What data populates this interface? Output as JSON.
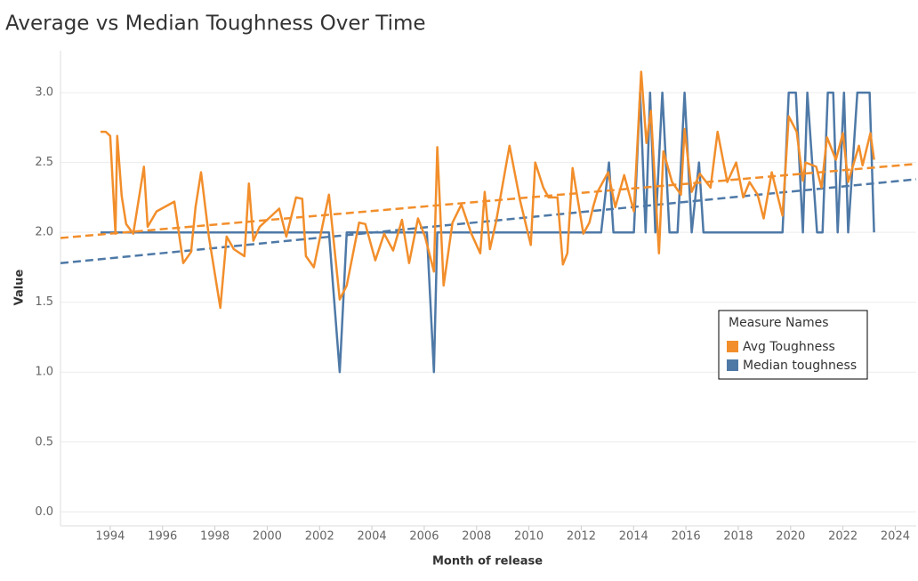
{
  "chart_data": {
    "type": "line",
    "title": "Average vs Median Toughness Over Time",
    "x_label": "Month of release",
    "y_label": "Value",
    "legend_title": "Measure Names",
    "legend_position": "right",
    "grid": true,
    "xlim": [
      1992.1,
      2024.8
    ],
    "xticks": [
      1994,
      1996,
      1998,
      2000,
      2002,
      2004,
      2006,
      2008,
      2010,
      2012,
      2014,
      2016,
      2018,
      2020,
      2022,
      2024
    ],
    "ylim": [
      -0.1,
      3.3
    ],
    "yticks": [
      {
        "value": 0,
        "label": "0.0"
      },
      0.5,
      {
        "value": 1,
        "label": "1.0"
      },
      1.5,
      {
        "value": 2,
        "label": "2.0"
      },
      2.5,
      {
        "value": 3,
        "label": "3.0"
      }
    ],
    "series": [
      {
        "name": "Avg Toughness",
        "color": "#f28e2b",
        "x": [
          1993.63,
          1993.83,
          1994.0,
          1994.2,
          1994.27,
          1994.44,
          1994.61,
          1994.88,
          1995.29,
          1995.43,
          1995.77,
          1996.45,
          1996.79,
          1997.09,
          1997.26,
          1997.47,
          1997.77,
          1998.21,
          1998.45,
          1998.72,
          1999.13,
          1999.3,
          1999.47,
          1999.71,
          2000.46,
          2000.73,
          2001.1,
          2001.34,
          2001.48,
          2001.78,
          2002.36,
          2002.77,
          2003.04,
          2003.51,
          2003.75,
          2004.13,
          2004.47,
          2004.81,
          2005.15,
          2005.42,
          2005.76,
          2006.03,
          2006.37,
          2006.5,
          2006.74,
          2007.08,
          2007.42,
          2007.8,
          2008.14,
          2008.31,
          2008.51,
          2008.75,
          2009.26,
          2009.66,
          2010.07,
          2010.24,
          2010.55,
          2010.75,
          2011.09,
          2011.3,
          2011.47,
          2011.67,
          2012.08,
          2012.31,
          2012.45,
          2012.62,
          2013.03,
          2013.3,
          2013.64,
          2014.01,
          2014.29,
          2014.49,
          2014.66,
          2014.97,
          2015.14,
          2015.47,
          2015.81,
          2015.95,
          2016.22,
          2016.53,
          2016.94,
          2017.21,
          2017.58,
          2017.92,
          2018.19,
          2018.43,
          2018.74,
          2018.97,
          2019.28,
          2019.69,
          2019.93,
          2020.23,
          2020.47,
          2020.57,
          2020.98,
          2021.18,
          2021.39,
          2021.73,
          2022.0,
          2022.2,
          2022.61,
          2022.75,
          2023.05,
          2023.19
        ],
        "values": [
          2.72,
          2.72,
          2.69,
          1.99,
          2.69,
          2.26,
          2.06,
          1.99,
          2.47,
          2.04,
          2.15,
          2.22,
          1.78,
          1.86,
          2.18,
          2.43,
          1.97,
          1.46,
          1.97,
          1.88,
          1.83,
          2.35,
          1.94,
          2.04,
          2.17,
          1.97,
          2.25,
          2.24,
          1.83,
          1.75,
          2.27,
          1.52,
          1.62,
          2.07,
          2.06,
          1.8,
          1.99,
          1.87,
          2.09,
          1.78,
          2.1,
          1.97,
          1.72,
          2.61,
          1.62,
          2.07,
          2.2,
          1.99,
          1.85,
          2.29,
          1.88,
          2.08,
          2.62,
          2.23,
          1.91,
          2.5,
          2.32,
          2.25,
          2.25,
          1.77,
          1.85,
          2.46,
          1.99,
          2.07,
          2.18,
          2.29,
          2.43,
          2.18,
          2.41,
          2.15,
          3.15,
          2.64,
          2.87,
          1.85,
          2.58,
          2.36,
          2.27,
          2.74,
          2.29,
          2.42,
          2.32,
          2.72,
          2.36,
          2.5,
          2.25,
          2.36,
          2.27,
          2.1,
          2.43,
          2.12,
          2.83,
          2.72,
          2.37,
          2.5,
          2.47,
          2.32,
          2.68,
          2.52,
          2.71,
          2.36,
          2.62,
          2.48,
          2.71,
          2.52
        ],
        "trend": {
          "x": [
            1992.1,
            2024.8
          ],
          "values": [
            1.96,
            2.49
          ]
        }
      },
      {
        "name": "Median toughness",
        "color": "#4e79a7",
        "x": [
          1993.63,
          2002.36,
          2002.77,
          2003.04,
          2006.1,
          2006.37,
          2006.5,
          2012.76,
          2013.06,
          2013.23,
          2014.01,
          2014.25,
          2014.46,
          2014.63,
          2014.83,
          2015.1,
          2015.37,
          2015.68,
          2015.95,
          2016.22,
          2016.5,
          2016.67,
          2019.69,
          2019.93,
          2020.2,
          2020.47,
          2020.64,
          2021.01,
          2021.22,
          2021.42,
          2021.63,
          2021.8,
          2022.04,
          2022.2,
          2022.55,
          2023.02,
          2023.19
        ],
        "values": [
          2,
          2,
          1,
          2,
          2,
          1,
          2,
          2,
          2.5,
          2,
          2,
          3,
          2,
          3,
          2,
          3,
          2,
          2,
          3,
          2,
          2.5,
          2,
          2,
          3,
          3,
          2,
          3,
          2,
          2,
          3,
          3,
          2,
          3,
          2,
          3,
          3,
          2
        ],
        "trend": {
          "x": [
            1992.1,
            2024.8
          ],
          "values": [
            1.78,
            2.38
          ]
        }
      }
    ]
  }
}
